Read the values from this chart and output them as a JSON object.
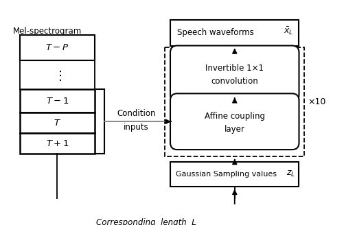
{
  "bg_color": "#ffffff",
  "mel_label": "Mel-spectrogram",
  "speech_text": "Speech waveforms",
  "invertible_line1": "Invertible 1×1",
  "invertible_line2": "convolution",
  "affine_line1": "Affine coupling",
  "affine_line2": "layer",
  "gaussian_text": "Gaussian Sampling values",
  "condition_line1": "Condition",
  "condition_line2": "inputs",
  "x10_text": "×10",
  "length_text": "Corresponding  length  L",
  "fig_width": 5.02,
  "fig_height": 3.28,
  "dpi": 100
}
